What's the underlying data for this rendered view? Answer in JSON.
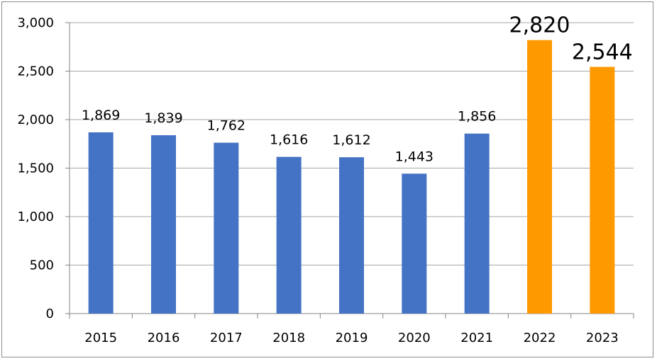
{
  "chart_data": {
    "type": "bar",
    "title": "",
    "xlabel": "",
    "ylabel": "",
    "categories": [
      "2015",
      "2016",
      "2017",
      "2018",
      "2019",
      "2020",
      "2021",
      "2022",
      "2023"
    ],
    "values": [
      1869,
      1839,
      1762,
      1616,
      1612,
      1443,
      1856,
      2820,
      2544
    ],
    "value_labels": [
      "1,869",
      "1,839",
      "1,762",
      "1,616",
      "1,612",
      "1,443",
      "1,856",
      "2,820",
      "2,544"
    ],
    "highlighted": [
      false,
      false,
      false,
      false,
      false,
      false,
      false,
      true,
      true
    ],
    "ylim": [
      0,
      3000
    ],
    "yticks": [
      0,
      500,
      1000,
      1500,
      2000,
      2500,
      3000
    ],
    "ytick_labels": [
      "0",
      "500",
      "1,000",
      "1,500",
      "2,000",
      "2,500",
      "3,000"
    ],
    "grid": true,
    "legend": "none",
    "colors": {
      "default": "#4472C4",
      "highlight": "#FF9900",
      "grid": "#a6a6a6",
      "axis": "#868686"
    }
  }
}
